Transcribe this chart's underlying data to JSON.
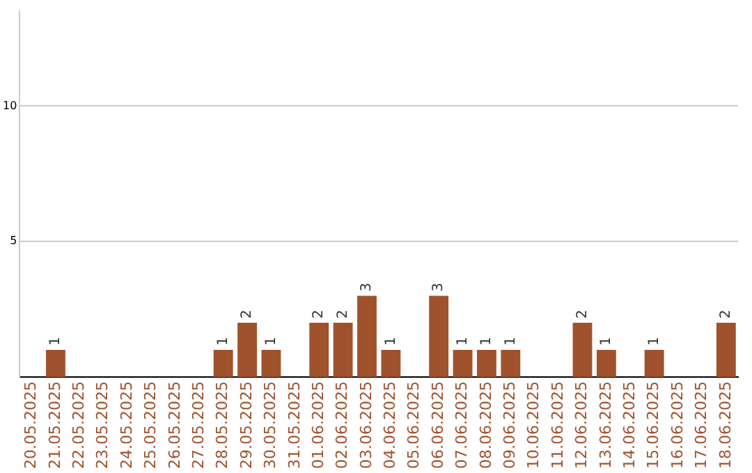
{
  "chart_data": {
    "type": "bar",
    "categories": [
      "20.05.2025",
      "21.05.2025",
      "22.05.2025",
      "23.05.2025",
      "24.05.2025",
      "25.05.2025",
      "26.05.2025",
      "27.05.2025",
      "28.05.2025",
      "29.05.2025",
      "30.05.2025",
      "31.05.2025",
      "01.06.2025",
      "02.06.2025",
      "03.06.2025",
      "04.06.2025",
      "05.06.2025",
      "06.06.2025",
      "07.06.2025",
      "08.06.2025",
      "09.06.2025",
      "10.06.2025",
      "11.06.2025",
      "12.06.2025",
      "13.06.2025",
      "14.06.2025",
      "15.06.2025",
      "16.06.2025",
      "17.06.2025",
      "18.06.2025"
    ],
    "values": [
      0,
      1,
      0,
      0,
      0,
      0,
      0,
      0,
      1,
      2,
      1,
      0,
      2,
      2,
      3,
      1,
      0,
      3,
      1,
      1,
      1,
      0,
      0,
      2,
      1,
      0,
      1,
      0,
      0,
      2
    ],
    "value_labels": [
      null,
      "1",
      null,
      null,
      null,
      null,
      null,
      null,
      "1",
      "2",
      "1",
      null,
      "2",
      "2",
      "3",
      "1",
      null,
      "3",
      "1",
      "1",
      "1",
      null,
      null,
      "2",
      "1",
      null,
      "1",
      null,
      null,
      "2"
    ],
    "color": "#a0522d",
    "ylim": [
      0,
      13.5
    ],
    "yticks": [
      5,
      10
    ],
    "grid": "y",
    "legend": false
  }
}
